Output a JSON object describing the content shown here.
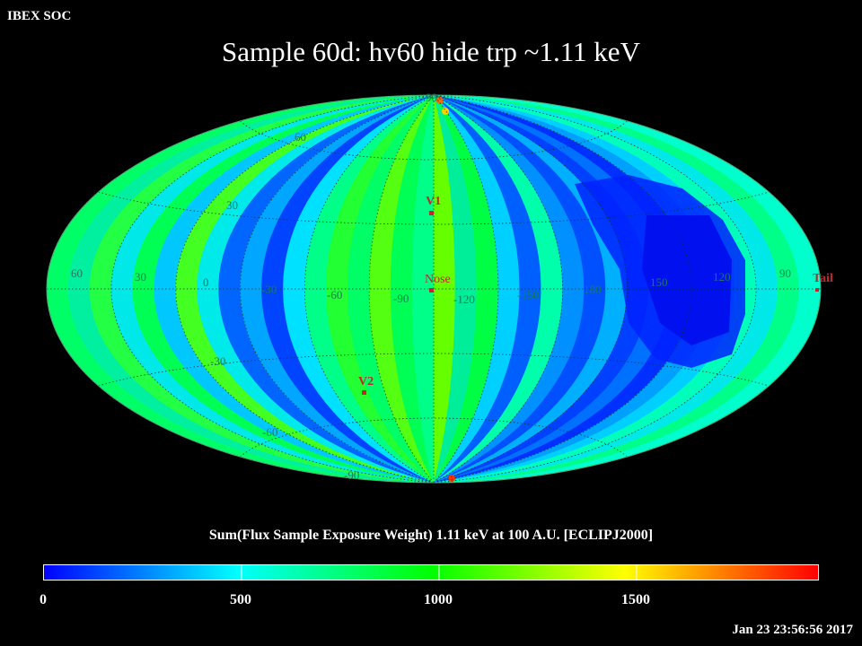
{
  "header": {
    "corner_label": "IBEX SOC",
    "title": "Sample 60d: hv60 hide trp ~1.11 keV"
  },
  "map": {
    "projection": "Aitoff (all-sky, ecliptic J2000)",
    "lat_labels": [
      "90",
      "60",
      "30",
      "-30",
      "-60",
      "-90"
    ],
    "lon_labels": [
      "60",
      "30",
      "0",
      "-30",
      "-60",
      "-90",
      "-120",
      "-150",
      "180",
      "150",
      "120",
      "90"
    ],
    "markers": [
      {
        "label": "V1",
        "color": "#c0272d"
      },
      {
        "label": "Nose",
        "color": "#c0272d"
      },
      {
        "label": "V2",
        "color": "#c0272d"
      },
      {
        "label": "Tail",
        "color": "#c0272d"
      }
    ]
  },
  "colorbar": {
    "label": "Sum(Flux Sample Exposure Weight)  1.11 keV at 100 A.U. [ECLIPJ2000]",
    "ticks": [
      "0",
      "500",
      "1000",
      "1500"
    ],
    "range": [
      0,
      2000
    ],
    "colors": [
      "#0000ff",
      "#00ffff",
      "#00ff00",
      "#ffff00",
      "#ff0000"
    ]
  },
  "footer": {
    "timestamp": "Jan 23 23:56:56 2017"
  },
  "chart_data": {
    "type": "heatmap",
    "title": "Sample 60d: hv60 hide trp ~1.11 keV",
    "xlabel": "",
    "ylabel": "",
    "legend": "colorbar at bottom"
  }
}
